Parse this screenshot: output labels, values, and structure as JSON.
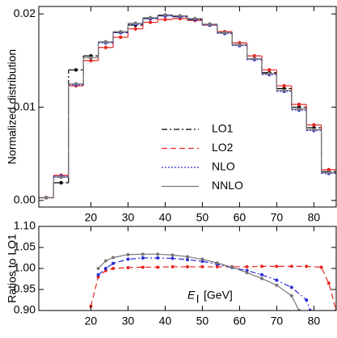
{
  "chart_data": [
    {
      "type": "histogram",
      "ylabel": "Normalized distribution",
      "bins": [
        6,
        10,
        14,
        18,
        22,
        26,
        30,
        34,
        38,
        42,
        46,
        50,
        54,
        58,
        62,
        66,
        70,
        74,
        78,
        82,
        86
      ],
      "xlim": [
        6,
        86
      ],
      "xticks": [
        20,
        30,
        40,
        50,
        60,
        70,
        80
      ],
      "ylim": [
        -0.0007,
        0.0208
      ],
      "yticks": [
        {
          "value": 0,
          "label": "0.00"
        },
        {
          "value": 0.01,
          "label": "0.01"
        },
        {
          "value": 0.02,
          "label": "0.02"
        }
      ],
      "legend": "center",
      "series": [
        {
          "name": "LO1",
          "color": "#000000",
          "linestyle": "dashdot",
          "values": [
            0.0003,
            0.0019,
            0.014,
            0.0155,
            0.017,
            0.018,
            0.0188,
            0.0195,
            0.0198,
            0.0197,
            0.0194,
            0.0189,
            0.018,
            0.0167,
            0.0152,
            0.0137,
            0.012,
            0.01,
            0.0078,
            0.0031
          ]
        },
        {
          "name": "LO2",
          "color": "#e8251f",
          "linestyle": "dashed",
          "values": [
            0.0003,
            0.0027,
            0.0123,
            0.015,
            0.0164,
            0.0175,
            0.0184,
            0.0191,
            0.0194,
            0.0195,
            0.0193,
            0.0188,
            0.0181,
            0.0169,
            0.0155,
            0.014,
            0.0123,
            0.0103,
            0.0081,
            0.0033
          ]
        },
        {
          "name": "NLO",
          "color": "#2b2bd6",
          "linestyle": "dotted",
          "values": [
            0.0003,
            0.0026,
            0.0124,
            0.0153,
            0.0169,
            0.018,
            0.0189,
            0.0195,
            0.0198,
            0.0197,
            0.0194,
            0.0188,
            0.0179,
            0.0166,
            0.0151,
            0.0135,
            0.0117,
            0.0097,
            0.0075,
            0.0029
          ]
        },
        {
          "name": "NNLO",
          "color": "#777777",
          "linestyle": "solid",
          "values": [
            0.0003,
            0.0025,
            0.0125,
            0.0153,
            0.017,
            0.0181,
            0.019,
            0.0196,
            0.0199,
            0.0198,
            0.0195,
            0.0189,
            0.018,
            0.0167,
            0.0152,
            0.0136,
            0.0118,
            0.0098,
            0.0076,
            0.003
          ]
        }
      ]
    },
    {
      "type": "line",
      "ylabel": "Ratios to LO1",
      "xlabel": {
        "symbol": "E",
        "subscript": "l",
        "unit": "[GeV]"
      },
      "xlim": [
        6,
        86
      ],
      "xticks": [
        20,
        30,
        40,
        50,
        60,
        70,
        80
      ],
      "ylim": [
        0.9,
        1.1
      ],
      "yticks": [
        {
          "value": 0.9,
          "label": "0.90"
        },
        {
          "value": 0.95,
          "label": "0.95"
        },
        {
          "value": 1.0,
          "label": "1.00"
        },
        {
          "value": 1.05,
          "label": "1.05"
        },
        {
          "value": 1.1,
          "label": "1.10"
        }
      ],
      "series": [
        {
          "color": "#e8251f",
          "linestyle": "dashed",
          "x": [
            20,
            22,
            24,
            26,
            30,
            34,
            38,
            42,
            46,
            50,
            54,
            58,
            62,
            66,
            70,
            74,
            78,
            82,
            84,
            86
          ],
          "values": [
            0.91,
            0.98,
            0.995,
            1.0,
            1.002,
            1.003,
            1.003,
            1.004,
            1.004,
            1.004,
            1.004,
            1.004,
            1.004,
            1.005,
            1.005,
            1.005,
            1.005,
            1.003,
            0.965,
            0.9
          ]
        },
        {
          "color": "#2b2bd6",
          "linestyle": "dashdot",
          "x": [
            22,
            24,
            26,
            30,
            34,
            38,
            42,
            46,
            50,
            54,
            58,
            62,
            66,
            70,
            74,
            78,
            79
          ],
          "values": [
            0.985,
            1.0,
            1.012,
            1.022,
            1.025,
            1.025,
            1.024,
            1.021,
            1.017,
            1.01,
            1.002,
            0.995,
            0.985,
            0.972,
            0.955,
            0.925,
            0.9
          ]
        },
        {
          "color": "#777777",
          "linestyle": "solid",
          "x": [
            22,
            24,
            26,
            30,
            34,
            38,
            42,
            46,
            50,
            54,
            58,
            62,
            66,
            70,
            74,
            76
          ],
          "values": [
            1.0,
            1.018,
            1.026,
            1.033,
            1.034,
            1.034,
            1.032,
            1.028,
            1.022,
            1.013,
            1.003,
            0.99,
            0.976,
            0.96,
            0.935,
            0.9
          ]
        }
      ]
    }
  ]
}
